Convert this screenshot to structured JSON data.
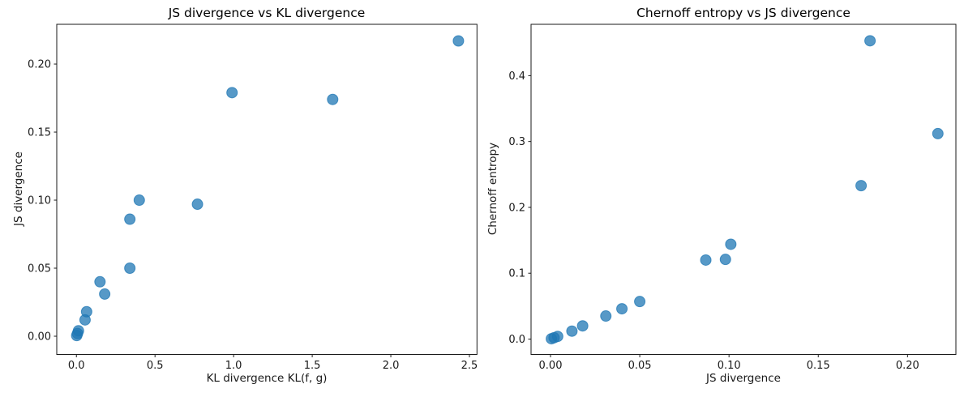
{
  "figure": {
    "background": "#ffffff",
    "marker_color": "#1f77b4",
    "marker_opacity": 0.75,
    "marker_radius": 6.5,
    "spine_color": "#1a1a1a",
    "text_color": "#1a1a1a"
  },
  "chart_data": [
    {
      "type": "scatter",
      "title": "JS divergence vs KL divergence",
      "xlabel": "KL divergence KL(f, g)",
      "ylabel": "JS divergence",
      "grid": false,
      "legend": null,
      "xlim": [
        -0.125,
        2.548
      ],
      "ylim": [
        -0.0134,
        0.2292
      ],
      "xticks": {
        "values": [
          0.0,
          0.5,
          1.0,
          1.5,
          2.0,
          2.5
        ],
        "labels": [
          "0.0",
          "0.5",
          "1.0",
          "1.5",
          "2.0",
          "2.5"
        ]
      },
      "yticks": {
        "values": [
          0.0,
          0.05,
          0.1,
          0.15,
          0.2
        ],
        "labels": [
          "0.00",
          "0.05",
          "0.10",
          "0.15",
          "0.20"
        ]
      },
      "points": [
        [
          2.43,
          0.217
        ],
        [
          0.99,
          0.179
        ],
        [
          1.63,
          0.174
        ],
        [
          0.4,
          0.1
        ],
        [
          0.77,
          0.097
        ],
        [
          0.34,
          0.086
        ],
        [
          0.34,
          0.05
        ],
        [
          0.15,
          0.04
        ],
        [
          0.18,
          0.031
        ],
        [
          0.065,
          0.018
        ],
        [
          0.055,
          0.012
        ],
        [
          0.013,
          0.004
        ],
        [
          0.007,
          0.002
        ],
        [
          0.002,
          0.0005
        ]
      ]
    },
    {
      "type": "scatter",
      "title": "Chernoff entropy vs JS divergence",
      "xlabel": "JS divergence",
      "ylabel": "Chernoff entropy",
      "grid": false,
      "legend": null,
      "xlim": [
        -0.0109,
        0.2271
      ],
      "ylim": [
        -0.0234,
        0.478
      ],
      "xticks": {
        "values": [
          0.0,
          0.05,
          0.1,
          0.15,
          0.2
        ],
        "labels": [
          "0.00",
          "0.05",
          "0.10",
          "0.15",
          "0.20"
        ]
      },
      "yticks": {
        "values": [
          0.0,
          0.1,
          0.2,
          0.3,
          0.4
        ],
        "labels": [
          "0.0",
          "0.1",
          "0.2",
          "0.3",
          "0.4"
        ]
      },
      "points": [
        [
          0.179,
          0.453
        ],
        [
          0.217,
          0.312
        ],
        [
          0.174,
          0.233
        ],
        [
          0.101,
          0.144
        ],
        [
          0.098,
          0.121
        ],
        [
          0.087,
          0.12
        ],
        [
          0.05,
          0.057
        ],
        [
          0.04,
          0.046
        ],
        [
          0.031,
          0.035
        ],
        [
          0.018,
          0.02
        ],
        [
          0.012,
          0.012
        ],
        [
          0.004,
          0.004
        ],
        [
          0.002,
          0.002
        ],
        [
          0.0005,
          0.0005
        ]
      ]
    }
  ]
}
